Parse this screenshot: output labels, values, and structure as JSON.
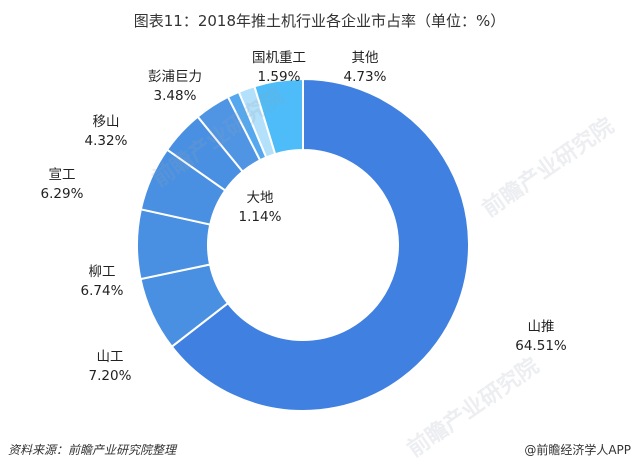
{
  "chart_data": {
    "type": "pie",
    "title": "图表11：2018年推土机行业各企业市占率（单位：%）",
    "slices": [
      {
        "name": "山推",
        "value": 64.51,
        "value_label": "64.51%",
        "color": "#4080e0"
      },
      {
        "name": "山工",
        "value": 7.2,
        "value_label": "7.20%",
        "color": "#4a90e2"
      },
      {
        "name": "柳工",
        "value": 6.74,
        "value_label": "6.74%",
        "color": "#4a90e2"
      },
      {
        "name": "宣工",
        "value": 6.29,
        "value_label": "6.29%",
        "color": "#4a90e2"
      },
      {
        "name": "移山",
        "value": 4.32,
        "value_label": "4.32%",
        "color": "#4a90e2"
      },
      {
        "name": "彭浦巨力",
        "value": 3.48,
        "value_label": "3.48%",
        "color": "#4f95e4"
      },
      {
        "name": "大地",
        "value": 1.14,
        "value_label": "1.14%",
        "color": "#55a8ee"
      },
      {
        "name": "国机重工",
        "value": 1.59,
        "value_label": "1.59%",
        "color": "#b3e0fa"
      },
      {
        "name": "其他",
        "value": 4.73,
        "value_label": "4.73%",
        "color": "#4dbcf8"
      }
    ]
  },
  "footer": {
    "source": "资料来源：前瞻产业研究院整理",
    "brand": "@前瞻经济学人APP"
  },
  "watermark": "前瞻产业研究院"
}
